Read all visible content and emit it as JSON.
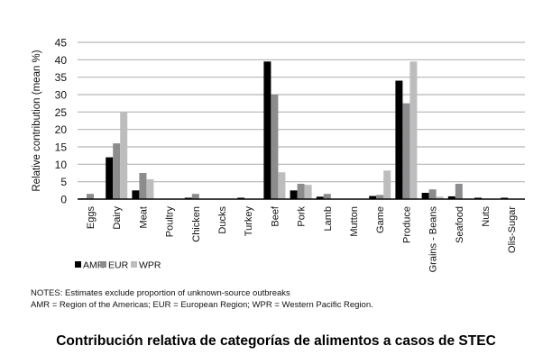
{
  "chart_data": {
    "type": "bar",
    "title": "",
    "xlabel": "",
    "ylabel": "Relative contribution (mean %)",
    "ylim": [
      0,
      45
    ],
    "yticks": [
      0,
      5,
      10,
      15,
      20,
      25,
      30,
      35,
      40,
      45
    ],
    "grid": true,
    "legend_placement": "bottom-left",
    "categories": [
      "Eggs",
      "Dairy",
      "Meat",
      "Poultry",
      "Chicken",
      "Ducks",
      "Turkey",
      "Beef",
      "Pork",
      "Lamb",
      "Mutton",
      "Game",
      "Produce",
      "Grains - Beans",
      "Seafood",
      "Nuts",
      "Olis-Sugar"
    ],
    "series": [
      {
        "name": "AMR",
        "color": "#000000",
        "values": [
          0.2,
          12,
          2.5,
          0,
          0.4,
          0,
          0.4,
          39.5,
          2.5,
          0.7,
          0,
          0.9,
          34,
          1.8,
          0.8,
          0.4,
          0.4
        ]
      },
      {
        "name": "EUR",
        "color": "#8c8c8e",
        "values": [
          1.5,
          16,
          7.5,
          0,
          1.5,
          0,
          0,
          30,
          4.4,
          1.5,
          0,
          1.2,
          27.5,
          2.8,
          4.4,
          0,
          0
        ]
      },
      {
        "name": "WPR",
        "color": "#bdbdbd",
        "values": [
          0,
          25,
          5.7,
          0,
          0,
          0,
          0,
          7.7,
          4.1,
          0,
          0,
          8.2,
          39.5,
          0.7,
          0,
          0,
          0
        ]
      }
    ]
  },
  "notes": {
    "line1": "NOTES: Estimates exclude proportion of unknown-source outbreaks",
    "line2": "AMR = Region of the Americas; EUR = European Region; WPR = Western Pacific Region."
  },
  "caption": "Contribución relativa de categorías de alimentos a casos de STEC"
}
